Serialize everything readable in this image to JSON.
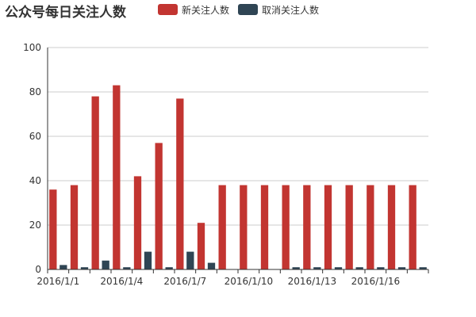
{
  "colors": {
    "series_new": "#c23531",
    "series_cancel": "#2f4554",
    "axis": "#333333",
    "grid": "#cccccc"
  },
  "chart_data": {
    "type": "bar",
    "title": "公众号每日关注人数",
    "legend_position": "top",
    "grid": true,
    "ylim": [
      0,
      100
    ],
    "y_ticks": [
      0,
      20,
      40,
      60,
      80,
      100
    ],
    "categories": [
      "2016/1/1",
      "2016/1/2",
      "2016/1/3",
      "2016/1/4",
      "2016/1/5",
      "2016/1/6",
      "2016/1/7",
      "2016/1/8",
      "2016/1/9",
      "2016/1/10",
      "2016/1/11",
      "2016/1/12",
      "2016/1/13",
      "2016/1/14",
      "2016/1/15",
      "2016/1/16",
      "2016/1/17",
      "2016/1/18"
    ],
    "x_tick_labels": [
      "2016/1/1",
      "2016/1/4",
      "2016/1/7",
      "2016/1/10",
      "2016/1/13",
      "2016/1/16"
    ],
    "series": [
      {
        "name": "新关注人数",
        "color": "#c23531",
        "values": [
          36,
          38,
          78,
          83,
          42,
          57,
          77,
          21,
          38,
          38,
          38,
          38,
          38,
          38,
          38,
          38,
          38,
          38
        ]
      },
      {
        "name": "取消关注人数",
        "color": "#2f4554",
        "values": [
          2,
          1,
          4,
          1,
          8,
          1,
          8,
          3,
          0,
          0,
          0,
          1,
          1,
          1,
          1,
          1,
          1,
          1
        ]
      }
    ]
  }
}
